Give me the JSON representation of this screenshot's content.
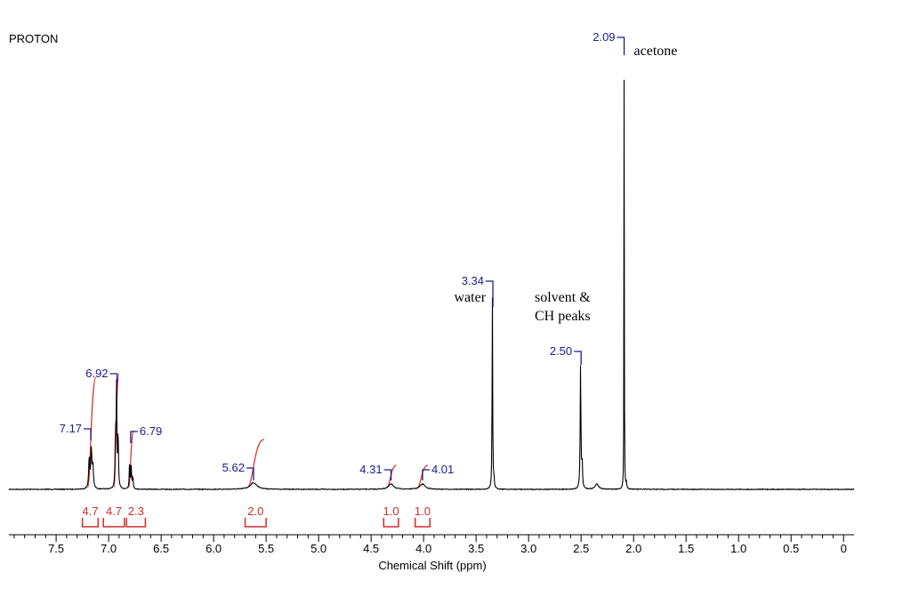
{
  "chart_data": {
    "type": "line",
    "title": "PROTON",
    "xlabel": "Chemical Shift (ppm)",
    "xlim": [
      7.95,
      -0.1
    ],
    "x_ticks": [
      7.5,
      7.0,
      6.5,
      6.0,
      5.5,
      5.0,
      4.5,
      4.0,
      3.5,
      3.0,
      2.5,
      2.0,
      1.5,
      1.0,
      0.5,
      0
    ],
    "x_tick_labels": [
      "7.5",
      "7.0",
      "6.5",
      "6.0",
      "5.5",
      "5.0",
      "4.5",
      "4.0",
      "3.5",
      "3.0",
      "2.5",
      "2.0",
      "1.5",
      "1.0",
      "0.5",
      "0"
    ],
    "peaks": [
      {
        "ppm": 7.17,
        "label": "7.17",
        "rel_height": 0.1
      },
      {
        "ppm": 6.92,
        "label": "6.92",
        "rel_height": 0.23
      },
      {
        "ppm": 6.79,
        "label": "6.79",
        "rel_height": 0.065
      },
      {
        "ppm": 5.62,
        "label": "5.62",
        "rel_height": 0.015
      },
      {
        "ppm": 4.31,
        "label": "4.31",
        "rel_height": 0.012
      },
      {
        "ppm": 4.01,
        "label": "4.01",
        "rel_height": 0.012
      },
      {
        "ppm": 3.34,
        "label": "3.34",
        "rel_height": 0.45
      },
      {
        "ppm": 2.5,
        "label": "2.50",
        "rel_height": 0.29
      },
      {
        "ppm": 2.09,
        "label": "2.09",
        "rel_height": 1.0
      }
    ],
    "integrals": [
      {
        "from": 7.25,
        "to": 7.1,
        "value": "4.7"
      },
      {
        "from": 7.05,
        "to": 6.85,
        "value": "4.7"
      },
      {
        "from": 6.83,
        "to": 6.65,
        "value": "2.3"
      },
      {
        "from": 5.7,
        "to": 5.5,
        "value": "2.0"
      },
      {
        "from": 4.38,
        "to": 4.24,
        "value": "1.0"
      },
      {
        "from": 4.08,
        "to": 3.94,
        "value": "1.0"
      }
    ],
    "annotations": [
      {
        "ppm": 2.09,
        "text": "acetone"
      },
      {
        "ppm": 3.34,
        "text": "water"
      },
      {
        "ppm": 2.5,
        "text": "solvent &"
      },
      {
        "ppm": 2.5,
        "text": "CH peaks"
      }
    ],
    "colors": {
      "spectrum": "#000000",
      "peak_label": "#1c1c8c",
      "integral": "#d42a2a"
    }
  }
}
